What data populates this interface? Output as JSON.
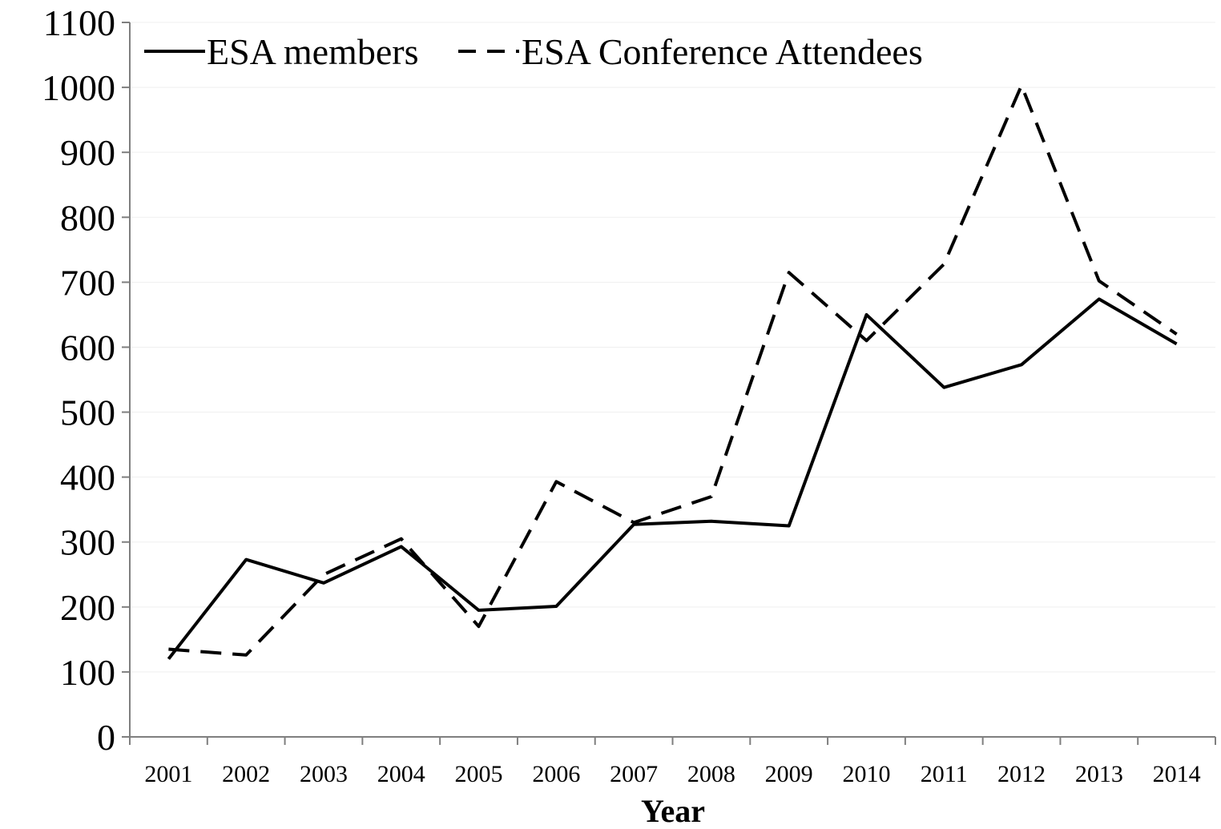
{
  "chart_data": {
    "type": "line",
    "title": "",
    "xlabel": "Year",
    "ylabel": "",
    "ylim": [
      0,
      1100
    ],
    "yticks": [
      0,
      100,
      200,
      300,
      400,
      500,
      600,
      700,
      800,
      900,
      1000,
      1100
    ],
    "grid": "horizontal",
    "legend_position": "top-left",
    "categories": [
      "2001",
      "2002",
      "2003",
      "2004",
      "2005",
      "2006",
      "2007",
      "2008",
      "2009",
      "2010",
      "2011",
      "2012",
      "2013",
      "2014"
    ],
    "series": [
      {
        "name": "ESA members",
        "line_style": "solid",
        "color": "#000000",
        "values": [
          120,
          273,
          237,
          293,
          195,
          201,
          327,
          332,
          325,
          650,
          538,
          573,
          674,
          605
        ]
      },
      {
        "name": "ESA Conference Attendees",
        "line_style": "dashed",
        "color": "#000000",
        "values": [
          135,
          126,
          250,
          305,
          170,
          393,
          330,
          370,
          715,
          610,
          728,
          1003,
          702,
          620
        ]
      }
    ]
  }
}
